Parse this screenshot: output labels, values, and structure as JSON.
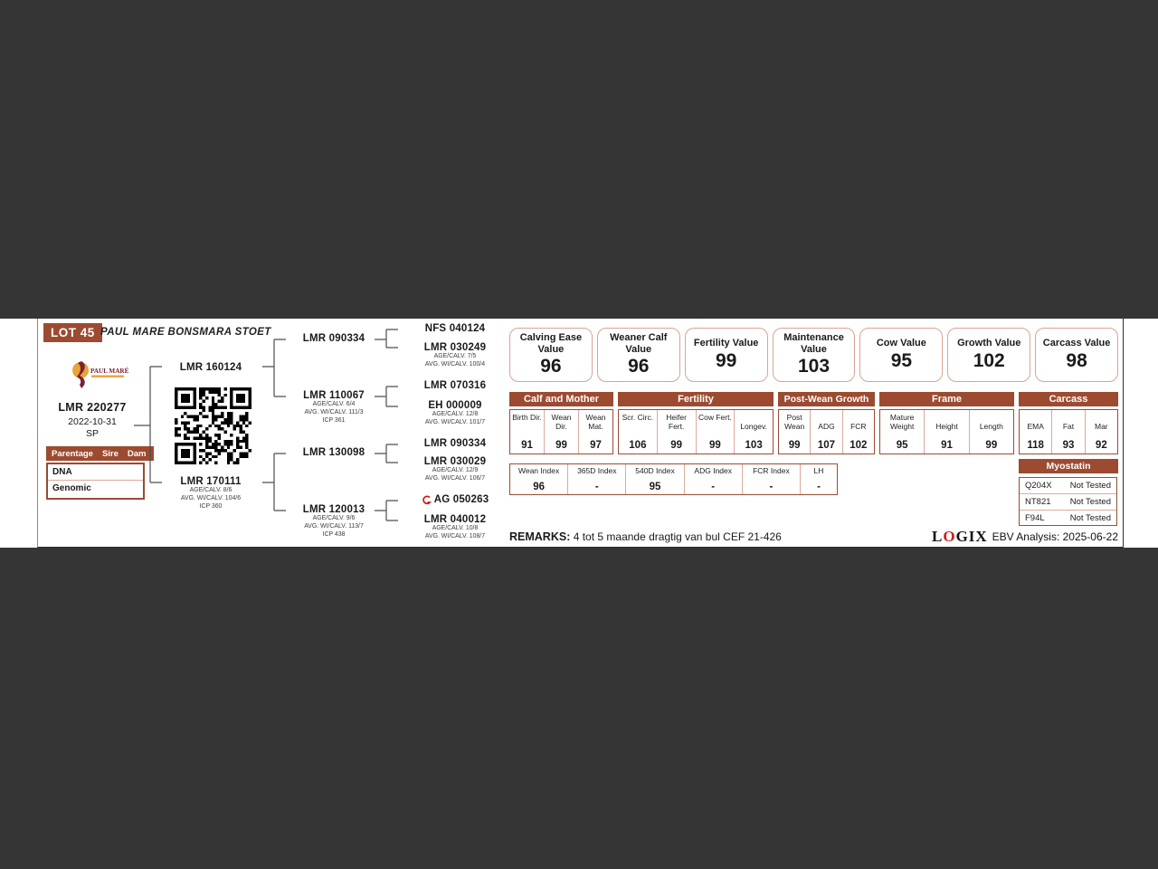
{
  "colors": {
    "accent_brown": "#9c4b31",
    "border_salmon": "#d9a492",
    "page_background": "#353535",
    "logix_red": "#d01d1d",
    "logo_maroon": "#7b2230",
    "logo_gold": "#e8a33d"
  },
  "header": {
    "lot": "LOT 45",
    "stud": "PAUL MARE BONSMARA STOET",
    "logo_text": "PAUL MARÉ"
  },
  "animal": {
    "id": "LMR 220277",
    "dob": "2022-10-31",
    "status": "SP"
  },
  "parentage": {
    "col1": "Parentage",
    "col2": "Sire",
    "col3": "Dam",
    "rows": [
      {
        "label": "DNA"
      },
      {
        "label": "Genomic"
      }
    ]
  },
  "pedigree": {
    "gen2": [
      {
        "id": "LMR 160124"
      },
      {
        "id": "LMR 170111",
        "line1": "AGE/CALV. 8/6",
        "line2": "AVG. WI/CALV. 104/6",
        "line3": "ICP 360"
      }
    ],
    "gen3": [
      {
        "id": "LMR 090334"
      },
      {
        "id": "LMR 110067",
        "line1": "AGE/CALV. 6/4",
        "line2": "AVG. WI/CALV. 111/3",
        "line3": "ICP 361"
      },
      {
        "id": "LMR 130098"
      },
      {
        "id": "LMR 120013",
        "line1": "AGE/CALV. 9/6",
        "line2": "AVG. WI/CALV. 113/7",
        "line3": "ICP 438"
      }
    ],
    "gen4": [
      {
        "id": "NFS 040124"
      },
      {
        "id": "LMR 030249",
        "line1": "AGE/CALV. 7/5",
        "line2": "AVG. WI/CALV. 100/4"
      },
      {
        "id": "LMR 070316"
      },
      {
        "id": "EH 000009",
        "line1": "AGE/CALV. 12/8",
        "line2": "AVG. WI/CALV. 101/7"
      },
      {
        "id": "LMR 090334"
      },
      {
        "id": "LMR 030029",
        "line1": "AGE/CALV. 12/9",
        "line2": "AVG. WI/CALV. 106/7"
      },
      {
        "id": "AG 050263"
      },
      {
        "id": "LMR 040012",
        "line1": "AGE/CALV. 10/8",
        "line2": "AVG. WI/CALV. 108/7"
      }
    ]
  },
  "value_boxes": [
    {
      "label": "Calving Ease Value",
      "value": "96"
    },
    {
      "label": "Weaner Calf Value",
      "value": "96"
    },
    {
      "label": "Fertility Value",
      "value": "99"
    },
    {
      "label": "Maintenance Value",
      "value": "103"
    },
    {
      "label": "Cow Value",
      "value": "95"
    },
    {
      "label": "Growth Value",
      "value": "102"
    },
    {
      "label": "Carcass Value",
      "value": "98"
    }
  ],
  "ebv_groups": [
    {
      "name": "Calf and Mother",
      "cols": [
        {
          "h": "Birth Dir.",
          "v": "91"
        },
        {
          "h": "Wean Dir.",
          "v": "99"
        },
        {
          "h": "Wean Mat.",
          "v": "97"
        }
      ]
    },
    {
      "name": "Fertility",
      "cols": [
        {
          "h": "Scr. Circ.",
          "v": "106"
        },
        {
          "h": "Heifer Fert.",
          "v": "99"
        },
        {
          "h": "Cow Fert.",
          "v": "99"
        },
        {
          "h": "Longev.",
          "v": "103"
        }
      ]
    },
    {
      "name": "Post-Wean Growth",
      "cols": [
        {
          "h": "Post Wean",
          "v": "99"
        },
        {
          "h": "ADG",
          "v": "107"
        },
        {
          "h": "FCR",
          "v": "102"
        }
      ]
    },
    {
      "name": "Frame",
      "cols": [
        {
          "h": "Mature Weight",
          "v": "95"
        },
        {
          "h": "Height",
          "v": "91"
        },
        {
          "h": "Length",
          "v": "99"
        }
      ]
    },
    {
      "name": "Carcass",
      "cols": [
        {
          "h": "EMA",
          "v": "118"
        },
        {
          "h": "Fat",
          "v": "93"
        },
        {
          "h": "Mar",
          "v": "92"
        }
      ]
    }
  ],
  "indexes": [
    {
      "label": "Wean Index",
      "value": "96"
    },
    {
      "label": "365D Index",
      "value": "-"
    },
    {
      "label": "540D Index",
      "value": "95"
    },
    {
      "label": "ADG Index",
      "value": "-"
    },
    {
      "label": "FCR Index",
      "value": "-"
    },
    {
      "label": "LH",
      "value": "-"
    }
  ],
  "myostatin": {
    "title": "Myostatin",
    "rows": [
      {
        "gene": "Q204X",
        "result": "Not Tested"
      },
      {
        "gene": "NT821",
        "result": "Not Tested"
      },
      {
        "gene": "F94L",
        "result": "Not Tested"
      }
    ]
  },
  "remarks": {
    "label": "REMARKS:",
    "text": "4 tot 5 maande dragtig van bul CEF 21-426"
  },
  "footer": {
    "logix_pre": "L",
    "logix_o": "O",
    "logix_post": "GIX",
    "ebv_analysis": "EBV Analysis: 2025-06-22"
  }
}
